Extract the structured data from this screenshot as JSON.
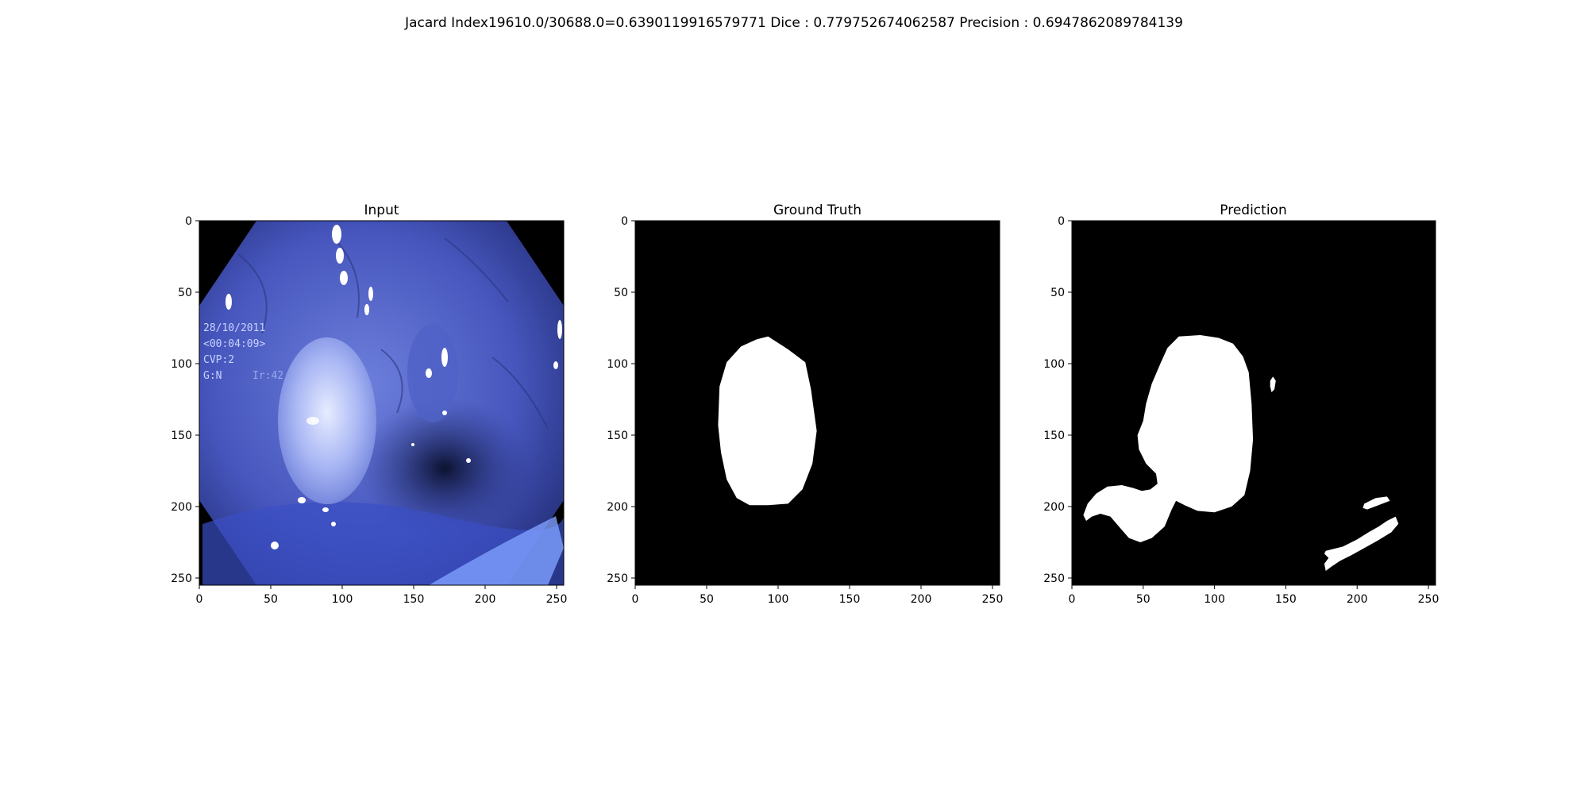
{
  "figure": {
    "suptitle": "Jacard Index19610.0/30688.0=0.6390119916579771 Dice : 0.779752674062587 Precision : 0.6947862089784139"
  },
  "chart_data": {
    "type": "image",
    "panels": [
      {
        "title": "Input",
        "content": "colonoscopy RGB frame (blue-tinted)",
        "overlay_text": [
          "28/10/2011",
          "<00:04:09>",
          "CVP:2",
          "G:N",
          "Ir:42"
        ],
        "xlim": [
          0,
          255
        ],
        "ylim": [
          255,
          0
        ],
        "xticks": [
          0,
          50,
          100,
          150,
          200,
          250
        ],
        "yticks": [
          0,
          50,
          100,
          150,
          200,
          250
        ]
      },
      {
        "title": "Ground Truth",
        "content": "binary mask",
        "xlim": [
          0,
          255
        ],
        "ylim": [
          255,
          0
        ],
        "xticks": [
          0,
          50,
          100,
          150,
          200,
          250
        ],
        "yticks": [
          0,
          50,
          100,
          150,
          200,
          250
        ],
        "regions": [
          {
            "name": "gt-polyp",
            "points": [
              [
                93,
                81
              ],
              [
                107,
                90
              ],
              [
                119,
                99
              ],
              [
                123,
                118
              ],
              [
                127,
                147
              ],
              [
                124,
                170
              ],
              [
                117,
                188
              ],
              [
                107,
                198
              ],
              [
                93,
                199
              ],
              [
                80,
                199
              ],
              [
                71,
                194
              ],
              [
                64,
                181
              ],
              [
                60,
                162
              ],
              [
                58,
                143
              ],
              [
                59,
                116
              ],
              [
                64,
                99
              ],
              [
                74,
                88
              ],
              [
                85,
                83
              ]
            ]
          }
        ]
      },
      {
        "title": "Prediction",
        "content": "binary mask",
        "xlim": [
          0,
          255
        ],
        "ylim": [
          255,
          0
        ],
        "xticks": [
          0,
          50,
          100,
          150,
          200,
          250
        ],
        "yticks": [
          0,
          50,
          100,
          150,
          200,
          250
        ],
        "regions": [
          {
            "name": "pred-main",
            "points": [
              [
                75,
                81
              ],
              [
                90,
                80
              ],
              [
                103,
                82
              ],
              [
                113,
                86
              ],
              [
                120,
                95
              ],
              [
                124,
                106
              ],
              [
                126,
                128
              ],
              [
                127,
                153
              ],
              [
                125,
                175
              ],
              [
                121,
                192
              ],
              [
                112,
                200
              ],
              [
                100,
                204
              ],
              [
                88,
                203
              ],
              [
                79,
                199
              ],
              [
                73,
                196
              ],
              [
                70,
                202
              ],
              [
                65,
                214
              ],
              [
                56,
                222
              ],
              [
                48,
                225
              ],
              [
                40,
                222
              ],
              [
                33,
                214
              ],
              [
                27,
                207
              ],
              [
                20,
                205
              ],
              [
                14,
                207
              ],
              [
                10,
                210
              ],
              [
                8,
                206
              ],
              [
                11,
                198
              ],
              [
                17,
                191
              ],
              [
                25,
                186
              ],
              [
                35,
                185
              ],
              [
                43,
                187
              ],
              [
                49,
                189
              ],
              [
                55,
                188
              ],
              [
                60,
                184
              ],
              [
                59,
                177
              ],
              [
                52,
                170
              ],
              [
                47,
                160
              ],
              [
                46,
                150
              ],
              [
                50,
                140
              ],
              [
                52,
                128
              ],
              [
                56,
                114
              ],
              [
                62,
                100
              ],
              [
                67,
                89
              ]
            ]
          },
          {
            "name": "pred-small-spot",
            "points": [
              [
                139,
                112
              ],
              [
                141,
                109
              ],
              [
                143,
                112
              ],
              [
                142,
                118
              ],
              [
                140,
                120
              ],
              [
                139,
                116
              ]
            ]
          },
          {
            "name": "pred-lower-blob",
            "points": [
              [
                178,
                231
              ],
              [
                190,
                228
              ],
              [
                200,
                223
              ],
              [
                208,
                218
              ],
              [
                215,
                214
              ],
              [
                221,
                210
              ],
              [
                227,
                207
              ],
              [
                229,
                212
              ],
              [
                224,
                218
              ],
              [
                214,
                224
              ],
              [
                205,
                229
              ],
              [
                196,
                234
              ],
              [
                188,
                238
              ],
              [
                182,
                242
              ],
              [
                178,
                245
              ],
              [
                177,
                240
              ],
              [
                180,
                236
              ],
              [
                177,
                233
              ]
            ]
          },
          {
            "name": "pred-lower-sliver",
            "points": [
              [
                205,
                198
              ],
              [
                213,
                194
              ],
              [
                221,
                193
              ],
              [
                223,
                196
              ],
              [
                215,
                199
              ],
              [
                207,
                202
              ],
              [
                204,
                201
              ]
            ]
          }
        ]
      }
    ]
  }
}
